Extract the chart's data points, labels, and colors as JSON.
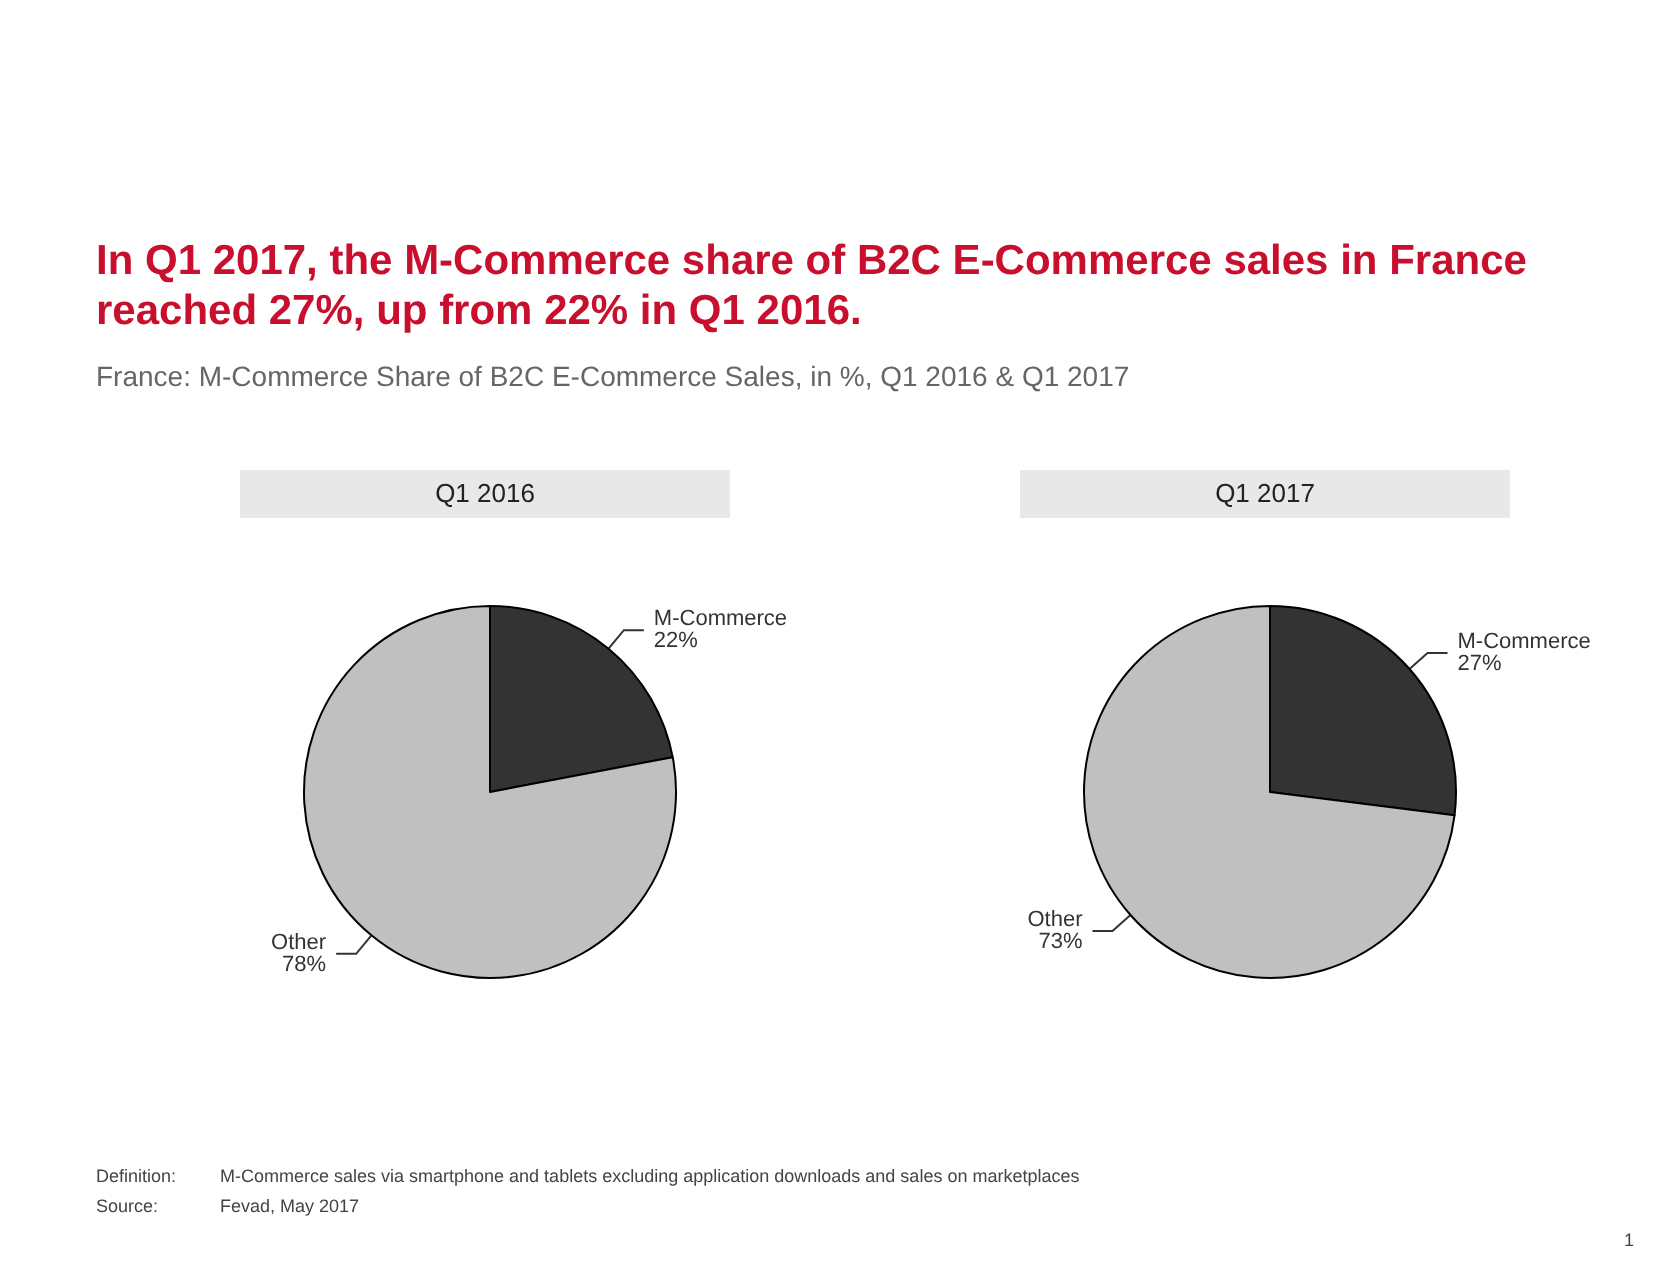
{
  "chart_data": [
    {
      "type": "other",
      "title": "In Q1 2017, the M-Commerce share of B2C E-Commerce sales in France reached 27%, up from 22% in Q1 2016.",
      "subtitle": "France: M-Commerce Share of B2C E-Commerce Sales, in %, Q1 2016 & Q1 2017",
      "annotations": [
        "Definition:",
        "M-Commerce sales via smartphone and tablets excluding application downloads and sales on marketplaces",
        "Source:",
        "Fevad, May 2017",
        "1"
      ]
    },
    {
      "type": "pie",
      "title": "Q1 2016",
      "categories": [
        "M-Commerce",
        "Other"
      ],
      "values": [
        22,
        78
      ],
      "colors": [
        "#333333",
        "#c0c0c0"
      ],
      "value_labels": [
        "22%",
        "78%"
      ]
    },
    {
      "type": "pie",
      "title": "Q1 2017",
      "categories": [
        "M-Commerce",
        "Other"
      ],
      "values": [
        27,
        73
      ],
      "colors": [
        "#333333",
        "#c0c0c0"
      ],
      "value_labels": [
        "27%",
        "73%"
      ]
    }
  ]
}
